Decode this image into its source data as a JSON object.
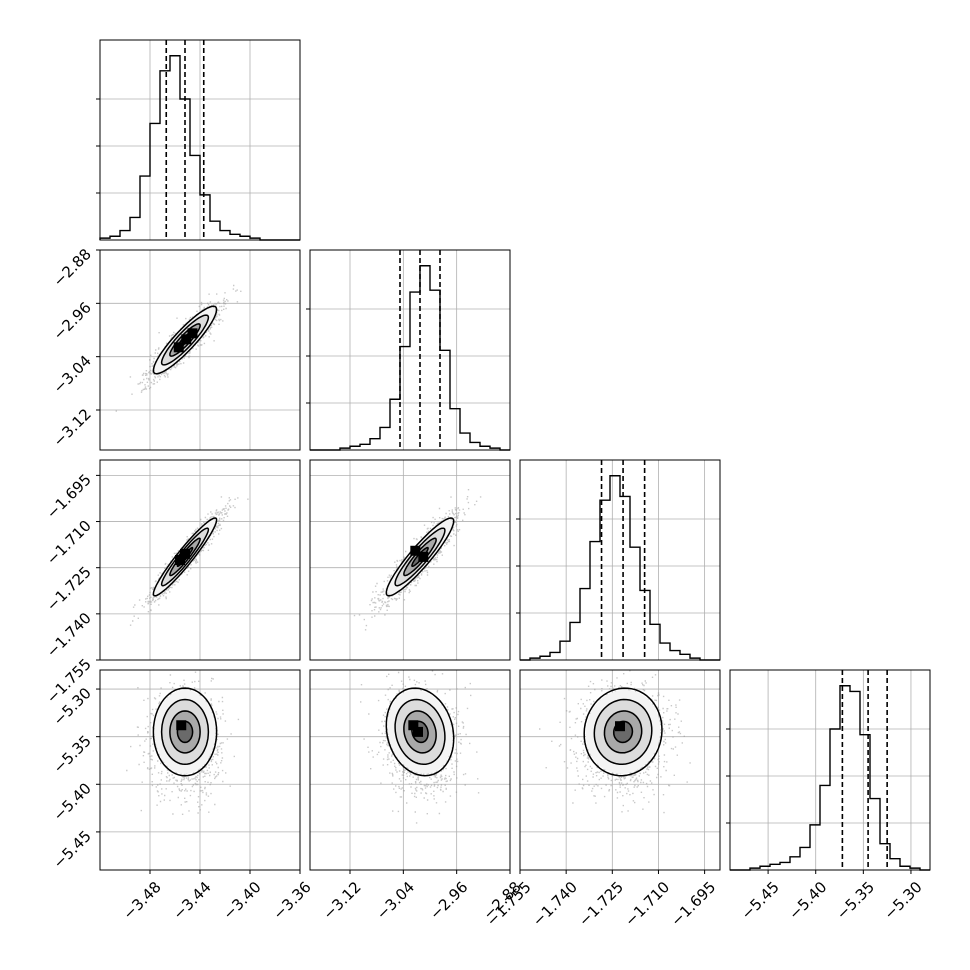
{
  "chart_data": {
    "type": "corner",
    "grid": true,
    "colors": {
      "ink": "#000000",
      "grid": "#b0b0b0",
      "scatter": "#9a9a9a"
    },
    "parameters": [
      {
        "mean": -3.452,
        "std": 0.011,
        "range": [
          -3.52,
          -3.36
        ],
        "ticks": [
          -3.48,
          -3.44,
          -3.4,
          -3.36
        ],
        "tick_labels": [
          "−3.48",
          "−3.44",
          "−3.40",
          "−3.36"
        ],
        "quantiles": [
          -3.467,
          -3.452,
          -3.437
        ]
      },
      {
        "mean": -3.015,
        "std": 0.022,
        "range": [
          -3.18,
          -2.88
        ],
        "ticks": [
          -3.12,
          -3.04,
          -2.96,
          -2.88
        ],
        "tick_labels": [
          "−3.12",
          "−3.04",
          "−2.96",
          "−2.88"
        ],
        "quantiles": [
          -3.045,
          -3.015,
          -2.985
        ]
      },
      {
        "mean": -1.7215,
        "std": 0.0055,
        "range": [
          -1.755,
          -1.69
        ],
        "ticks": [
          -1.755,
          -1.74,
          -1.725,
          -1.71,
          -1.695
        ],
        "tick_labels": [
          "−1.755",
          "−1.740",
          "−1.725",
          "−1.710",
          "−1.695"
        ],
        "quantiles": [
          -1.7285,
          -1.7215,
          -1.7145
        ]
      },
      {
        "mean": -5.345,
        "std": 0.02,
        "range": [
          -5.49,
          -5.28
        ],
        "ticks": [
          -5.45,
          -5.4,
          -5.35,
          -5.3
        ],
        "tick_labels": [
          "−5.45",
          "−5.40",
          "−5.35",
          "−5.30"
        ],
        "quantiles": [
          -5.372,
          -5.345,
          -5.325
        ]
      }
    ],
    "histograms": [
      {
        "param": 0,
        "counts": [
          0.01,
          0.02,
          0.05,
          0.12,
          0.34,
          0.62,
          0.9,
          0.98,
          0.75,
          0.45,
          0.24,
          0.1,
          0.05,
          0.03,
          0.02,
          0.01,
          0,
          0,
          0,
          0
        ]
      },
      {
        "param": 1,
        "counts": [
          0,
          0,
          0,
          0.01,
          0.02,
          0.03,
          0.06,
          0.12,
          0.27,
          0.55,
          0.84,
          0.98,
          0.85,
          0.53,
          0.22,
          0.09,
          0.04,
          0.02,
          0.01,
          0
        ]
      },
      {
        "param": 2,
        "counts": [
          0,
          0.01,
          0.02,
          0.04,
          0.1,
          0.2,
          0.38,
          0.63,
          0.85,
          0.98,
          0.87,
          0.6,
          0.37,
          0.19,
          0.09,
          0.05,
          0.03,
          0.01,
          0,
          0
        ]
      },
      {
        "param": 3,
        "counts": [
          0,
          0,
          0.01,
          0.02,
          0.03,
          0.04,
          0.07,
          0.12,
          0.24,
          0.45,
          0.75,
          0.98,
          0.95,
          0.72,
          0.38,
          0.14,
          0.06,
          0.02,
          0.01,
          0
        ]
      }
    ],
    "pairs": [
      {
        "x": 0,
        "y": 1,
        "correlation": 0.9,
        "peaks": [
          [
            -3.457,
            -3.026
          ],
          [
            -3.451,
            -3.014
          ],
          [
            -3.446,
            -3.005
          ]
        ]
      },
      {
        "x": 0,
        "y": 2,
        "correlation": 0.95,
        "peaks": [
          [
            -3.456,
            -1.7225
          ],
          [
            -3.452,
            -1.7205
          ]
        ]
      },
      {
        "x": 1,
        "y": 2,
        "correlation": 0.92,
        "peaks": [
          [
            -3.022,
            -1.7195
          ],
          [
            -3.01,
            -1.7215
          ]
        ]
      },
      {
        "x": 0,
        "y": 3,
        "correlation": 0.0,
        "peaks": [
          [
            -3.455,
            -5.338
          ]
        ]
      },
      {
        "x": 1,
        "y": 3,
        "correlation": -0.15,
        "peaks": [
          [
            -3.025,
            -5.338
          ],
          [
            -3.018,
            -5.345
          ]
        ]
      },
      {
        "x": 2,
        "y": 3,
        "correlation": 0.05,
        "peaks": [
          [
            -1.7225,
            -5.339
          ]
        ]
      }
    ]
  }
}
